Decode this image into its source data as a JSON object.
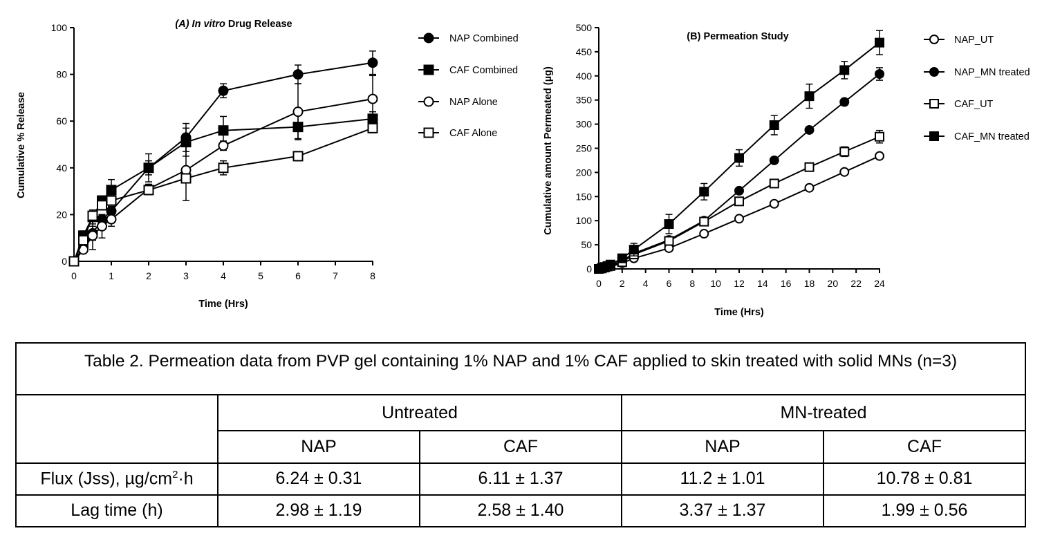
{
  "chart_data": [
    {
      "type": "line",
      "title_italic": "(A) In vitro",
      "title_rest": " Drug Release",
      "xlabel": "Time (Hrs)",
      "ylabel": "Cumulative % Release",
      "xlim": [
        0,
        8
      ],
      "ylim": [
        0,
        100
      ],
      "xticks": [
        "0",
        "1",
        "2",
        "3",
        "4",
        "5",
        "6",
        "7",
        "8"
      ],
      "yticks": [
        "0",
        "20",
        "40",
        "60",
        "80",
        "100"
      ],
      "legend_position": "right",
      "series": [
        {
          "name": "NAP Combined",
          "marker": "circle",
          "filled": true,
          "x": [
            0,
            0.25,
            0.5,
            0.75,
            1,
            2,
            3,
            4,
            6,
            8
          ],
          "y": [
            0,
            6,
            12,
            18,
            21.5,
            40,
            53,
            73,
            80,
            85
          ],
          "err": [
            0,
            2,
            3,
            2,
            2,
            3,
            6,
            3,
            4,
            5
          ]
        },
        {
          "name": "CAF Combined",
          "marker": "square",
          "filled": true,
          "x": [
            0,
            0.25,
            0.5,
            0.75,
            1,
            2,
            3,
            4,
            6,
            8
          ],
          "y": [
            0,
            11,
            19,
            26,
            30.5,
            40,
            51,
            56,
            57.5,
            61
          ],
          "err": [
            0,
            2,
            3,
            2,
            4.5,
            6,
            6,
            6,
            5,
            3
          ]
        },
        {
          "name": "NAP Alone",
          "marker": "circle",
          "filled": false,
          "x": [
            0,
            0.25,
            0.5,
            0.75,
            1,
            2,
            3,
            4,
            6,
            8
          ],
          "y": [
            0,
            5,
            11,
            15,
            18,
            31,
            39,
            49.5,
            64,
            69.5
          ],
          "err": [
            0,
            1.5,
            6,
            5,
            3,
            2,
            13,
            2,
            12,
            10
          ]
        },
        {
          "name": "CAF Alone",
          "marker": "square",
          "filled": false,
          "x": [
            0,
            0.25,
            0.5,
            0.75,
            1,
            2,
            3,
            4,
            6,
            8
          ],
          "y": [
            0,
            9,
            19.5,
            24,
            26,
            30.5,
            35.5,
            40,
            45,
            57
          ],
          "err": [
            0,
            2,
            2,
            2,
            2,
            2,
            2,
            3,
            2,
            2
          ]
        }
      ]
    },
    {
      "type": "line",
      "title": "(B) Permeation Study",
      "xlabel": "Time (Hrs)",
      "ylabel": "Cumulative amount Permeated (µg)",
      "xlim": [
        0,
        24
      ],
      "ylim": [
        0,
        500
      ],
      "xticks": [
        "0",
        "2",
        "4",
        "6",
        "8",
        "10",
        "12",
        "14",
        "16",
        "18",
        "20",
        "22",
        "24"
      ],
      "yticks": [
        "0",
        "50",
        "100",
        "150",
        "200",
        "250",
        "300",
        "350",
        "400",
        "450",
        "500"
      ],
      "legend_position": "right",
      "series": [
        {
          "name": "NAP_UT",
          "marker": "circle",
          "filled": false,
          "x": [
            0,
            0.25,
            0.5,
            0.75,
            1,
            2,
            3,
            6,
            9,
            12,
            15,
            18,
            21,
            24
          ],
          "y": [
            0,
            1,
            2,
            3,
            5,
            12,
            22,
            43,
            73,
            104,
            135,
            168,
            201,
            234
          ],
          "err": [
            0,
            0,
            0,
            0,
            0,
            0,
            0,
            0,
            0,
            0,
            0,
            0,
            0,
            0
          ]
        },
        {
          "name": "NAP_MN treated",
          "marker": "circle",
          "filled": true,
          "x": [
            0,
            0.25,
            0.5,
            0.75,
            1,
            2,
            3,
            6,
            9,
            12,
            15,
            18,
            21,
            24
          ],
          "y": [
            0,
            1,
            3,
            5,
            7,
            17,
            32,
            60,
            100,
            162,
            225,
            288,
            346,
            404
          ],
          "err": [
            0,
            0,
            0,
            0,
            0,
            0,
            0,
            0,
            0,
            0,
            0,
            0,
            0,
            13
          ]
        },
        {
          "name": "CAF_UT",
          "marker": "square",
          "filled": false,
          "x": [
            0,
            0.25,
            0.5,
            0.75,
            1,
            2,
            3,
            6,
            9,
            12,
            15,
            18,
            21,
            24
          ],
          "y": [
            0,
            1,
            3,
            5,
            6,
            14,
            30,
            58,
            98,
            140,
            177,
            211,
            243,
            274
          ],
          "err": [
            0,
            0,
            0,
            0,
            0,
            0,
            0,
            0,
            5,
            0,
            0,
            0,
            10,
            13
          ]
        },
        {
          "name": "CAF_MN treated",
          "marker": "square",
          "filled": true,
          "x": [
            0,
            0.25,
            0.5,
            0.75,
            1,
            2,
            3,
            6,
            9,
            12,
            15,
            18,
            21,
            24
          ],
          "y": [
            0,
            2,
            4,
            6,
            9,
            22,
            40,
            93,
            160,
            230,
            298,
            358,
            412,
            469
          ],
          "err": [
            0,
            0,
            0,
            0,
            0,
            5,
            13,
            20,
            17,
            17,
            20,
            25,
            18,
            25
          ]
        }
      ]
    }
  ],
  "table": {
    "caption": "Table 2. Permeation data from PVP gel containing 1% NAP and 1% CAF applied to skin treated with solid MNs (n=3)",
    "groups": [
      "Untreated",
      "MN-treated"
    ],
    "subheaders": [
      "NAP",
      "CAF",
      "NAP",
      "CAF"
    ],
    "rows": [
      {
        "label": "Flux (Jss), µg/cm",
        "label_sup": "2",
        "label_tail": "·h",
        "values": [
          "6.24 ± 0.31",
          "6.11 ± 1.37",
          "11.2 ± 1.01",
          "10.78 ± 0.81"
        ]
      },
      {
        "label": "Lag time (h)",
        "label_sup": "",
        "label_tail": "",
        "values": [
          "2.98 ± 1.19",
          "2.58 ± 1.40",
          "3.37 ± 1.37",
          "1.99 ± 0.56"
        ]
      }
    ]
  }
}
